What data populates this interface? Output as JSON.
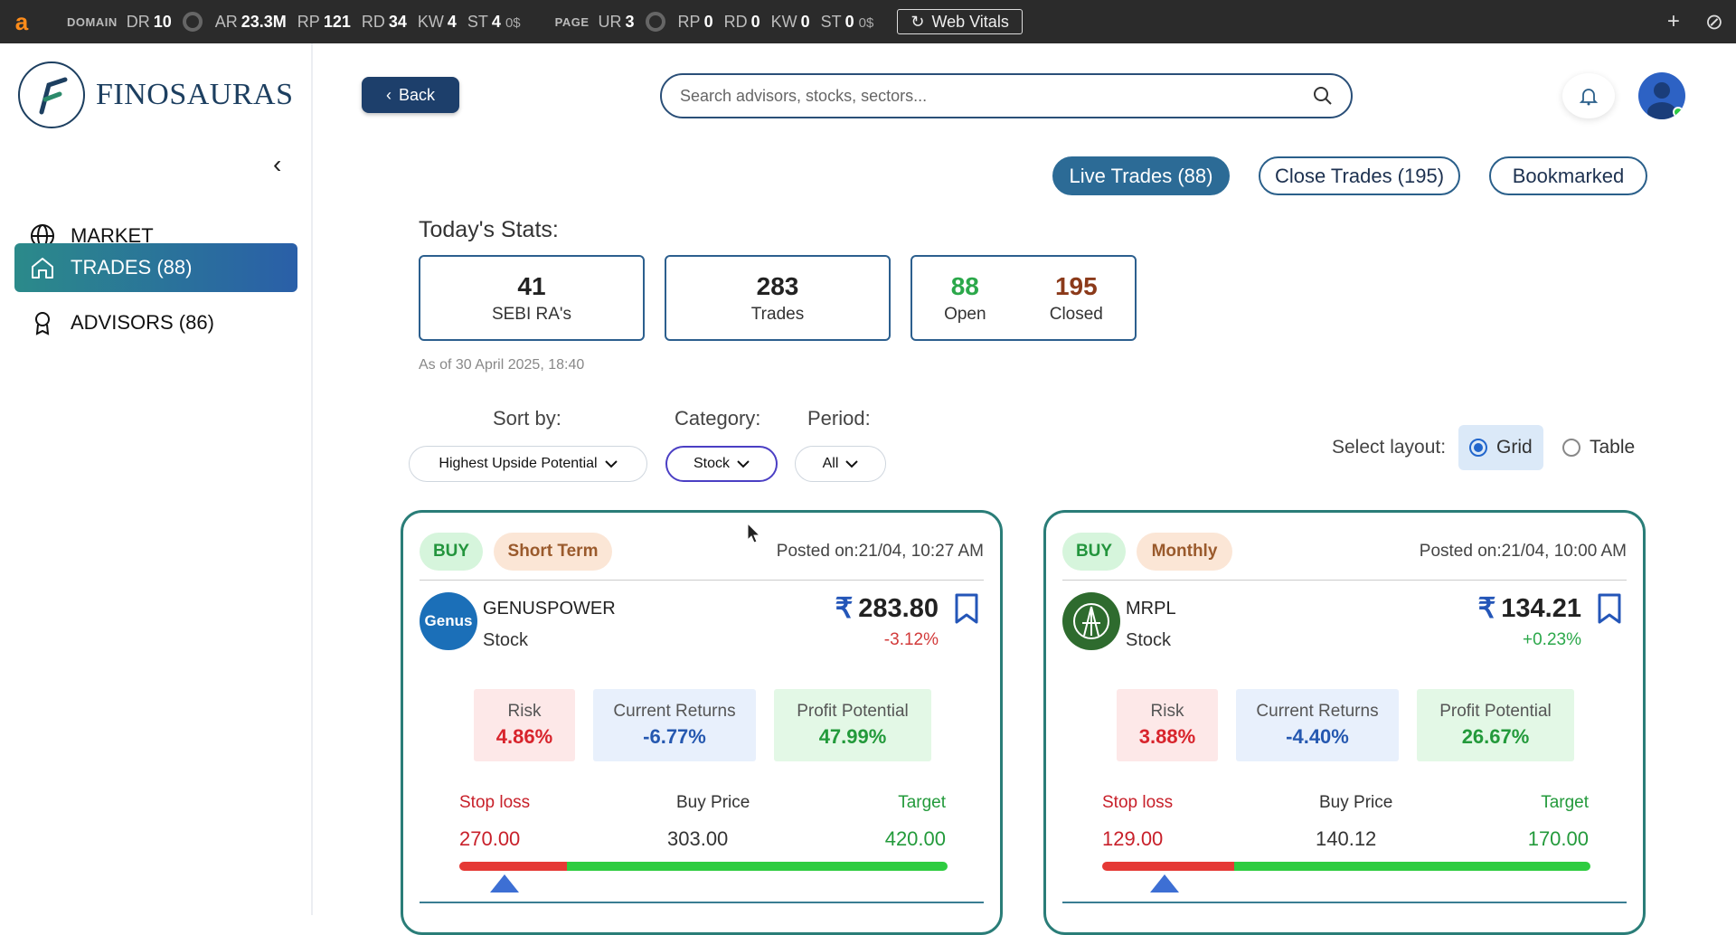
{
  "extension_bar": {
    "domain_tag": "DOMAIN",
    "page_tag": "PAGE",
    "domain_metrics": [
      {
        "label": "DR",
        "value": "10"
      },
      {
        "label": "AR",
        "value": "23.3M"
      },
      {
        "label": "RP",
        "value": "121"
      },
      {
        "label": "RD",
        "value": "34"
      },
      {
        "label": "KW",
        "value": "4"
      },
      {
        "label": "ST",
        "value": "4",
        "suffix": "0$"
      }
    ],
    "page_metrics": [
      {
        "label": "UR",
        "value": "3"
      },
      {
        "label": "RP",
        "value": "0"
      },
      {
        "label": "RD",
        "value": "0"
      },
      {
        "label": "KW",
        "value": "0"
      },
      {
        "label": "ST",
        "value": "0",
        "suffix": "0$"
      }
    ],
    "web_vitals_label": "Web Vitals",
    "logo_letter": "a"
  },
  "sidebar": {
    "brand": "FINOSAURAS",
    "items": [
      {
        "label": "MARKET",
        "icon": "globe-icon",
        "active": false
      },
      {
        "label": "TRADES (88)",
        "icon": "home-icon",
        "active": true
      },
      {
        "label": "ADVISORS (86)",
        "icon": "award-icon",
        "active": false
      }
    ]
  },
  "header": {
    "back_label": "Back",
    "search_placeholder": "Search advisors, stocks, sectors..."
  },
  "tabs": [
    {
      "label": "Live Trades (88)",
      "active": true
    },
    {
      "label": "Close Trades (195)",
      "active": false
    },
    {
      "label": "Bookmarked",
      "active": false
    }
  ],
  "stats": {
    "title": "Today's Stats:",
    "advisors": {
      "value": "41",
      "label": "SEBI RA's"
    },
    "trades": {
      "value": "283",
      "label": "Trades"
    },
    "open": {
      "value": "88",
      "label": "Open"
    },
    "closed": {
      "value": "195",
      "label": "Closed"
    },
    "as_of": "As of 30 April 2025, 18:40",
    "colors": {
      "open": "#2ba84a",
      "closed": "#8b3a1a"
    }
  },
  "filters": {
    "sort_label": "Sort by:",
    "sort_value": "Highest Upside Potential",
    "category_label": "Category:",
    "category_value": "Stock",
    "period_label": "Period:",
    "period_value": "All",
    "layout_label": "Select layout:",
    "layout_options": [
      {
        "label": "Grid",
        "selected": true
      },
      {
        "label": "Table",
        "selected": false
      }
    ]
  },
  "cards": [
    {
      "action": "BUY",
      "term": "Short Term",
      "posted": "Posted on:21/04, 10:27 AM",
      "logo_text": "Genus",
      "logo_color": "#1b6fb8",
      "symbol": "GENUSPOWER",
      "type": "Stock",
      "price": "283.80",
      "change": "-3.12%",
      "change_dir": "neg",
      "risk_label": "Risk",
      "risk": "4.86%",
      "current_label": "Current Returns",
      "current": "-6.77%",
      "potential_label": "Profit Potential",
      "potential": "47.99%",
      "stop_loss_label": "Stop loss",
      "stop_loss": "270.00",
      "buy_price_label": "Buy Price",
      "buy_price": "303.00",
      "target_label": "Target",
      "target": "420.00",
      "cmp_fraction": 0.092
    },
    {
      "action": "BUY",
      "term": "Monthly",
      "posted": "Posted on:21/04, 10:00 AM",
      "logo_text": "",
      "logo_color": "#2e6b2e",
      "symbol": "MRPL",
      "type": "Stock",
      "price": "134.21",
      "change": "+0.23%",
      "change_dir": "pos",
      "risk_label": "Risk",
      "risk": "3.88%",
      "current_label": "Current Returns",
      "current": "-4.40%",
      "potential_label": "Profit Potential",
      "potential": "26.67%",
      "stop_loss_label": "Stop loss",
      "stop_loss": "129.00",
      "buy_price_label": "Buy Price",
      "buy_price": "140.12",
      "target_label": "Target",
      "target": "170.00",
      "cmp_fraction": 0.127
    }
  ]
}
